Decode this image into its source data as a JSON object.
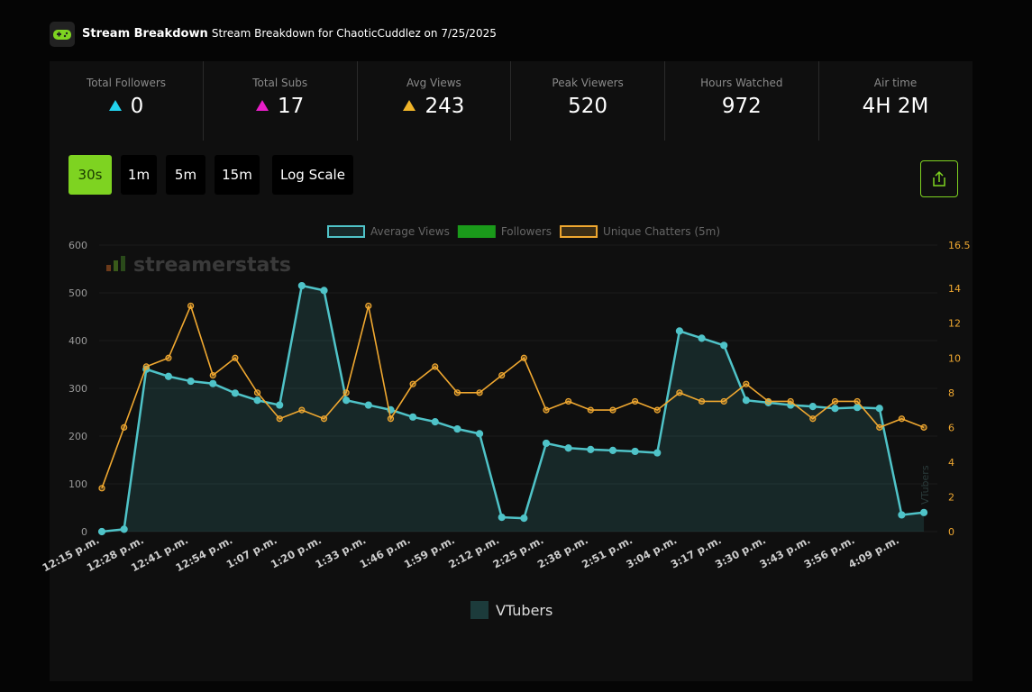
{
  "header": {
    "title": "Stream Breakdown",
    "subtitle": "Stream Breakdown for ChaoticCuddlez on 7/25/2025"
  },
  "stats": [
    {
      "label": "Total Followers",
      "value": "0",
      "color": "#22d3ee"
    },
    {
      "label": "Total Subs",
      "value": "17",
      "color": "#e91ec8"
    },
    {
      "label": "Avg Views",
      "value": "243",
      "color": "#f0b429"
    },
    {
      "label": "Peak Viewers",
      "value": "520"
    },
    {
      "label": "Hours Watched",
      "value": "972"
    },
    {
      "label": "Air time",
      "value": "4H 2M"
    }
  ],
  "buttons": [
    "30s",
    "1m",
    "5m",
    "15m",
    "Log Scale"
  ],
  "chart_data": {
    "type": "line",
    "watermark": "streamerstats",
    "y2_label": "VTubers",
    "categories": [
      "12:15 p.m.",
      null,
      "12:28 p.m.",
      null,
      "12:41 p.m.",
      null,
      "12:54 p.m.",
      null,
      "1:07 p.m.",
      null,
      "1:20 p.m.",
      null,
      "1:33 p.m.",
      null,
      "1:46 p.m.",
      null,
      "1:59 p.m.",
      null,
      "2:12 p.m.",
      null,
      "2:25 p.m.",
      null,
      "2:38 p.m.",
      null,
      "2:51 p.m.",
      null,
      "3:04 p.m.",
      null,
      "3:17 p.m.",
      null,
      "3:30 p.m.",
      null,
      "3:43 p.m.",
      null,
      "3:56 p.m.",
      null,
      "4:09 p.m.",
      null
    ],
    "series": [
      {
        "name": "Average Views",
        "color": "#4fc3c8",
        "fill": true,
        "values": [
          0,
          5,
          340,
          325,
          315,
          310,
          290,
          275,
          265,
          515,
          505,
          275,
          265,
          255,
          240,
          230,
          215,
          205,
          30,
          28,
          185,
          175,
          172,
          170,
          168,
          165,
          420,
          405,
          390,
          275,
          270,
          265,
          262,
          258,
          260,
          258,
          35,
          40
        ]
      },
      {
        "name": "Followers",
        "color": "#1a9a1a",
        "values": [
          null,
          null,
          null,
          null,
          null,
          null,
          null,
          null,
          null,
          null,
          null,
          null,
          null,
          null,
          null,
          null,
          null,
          null,
          null,
          null,
          null,
          null,
          null,
          null,
          null,
          null,
          null,
          null,
          null,
          null,
          null,
          null,
          null,
          null,
          null,
          null,
          null,
          null
        ]
      },
      {
        "name": "Unique Chatters (5m)",
        "color": "#f0a830",
        "axis": "y2",
        "values": [
          2.5,
          6,
          9.5,
          10,
          13,
          9,
          10,
          8,
          6.5,
          7,
          6.5,
          8,
          13,
          6.5,
          8.5,
          9.5,
          8,
          8,
          9,
          10,
          7,
          7.5,
          7,
          7,
          7.5,
          7,
          8,
          7.5,
          7.5,
          8.5,
          7.5,
          7.5,
          6.5,
          7.5,
          7.5,
          6,
          6.5,
          6
        ]
      }
    ],
    "ylim": [
      0,
      600
    ],
    "yticks": [
      0,
      100,
      200,
      300,
      400,
      500,
      600
    ],
    "y2lim": [
      0,
      16.5
    ],
    "y2ticks": [
      0,
      2,
      4,
      6,
      8,
      10,
      12,
      14,
      16.5
    ],
    "secondary_legend": {
      "name": "VTubers",
      "color": "#1c3b3b"
    }
  }
}
